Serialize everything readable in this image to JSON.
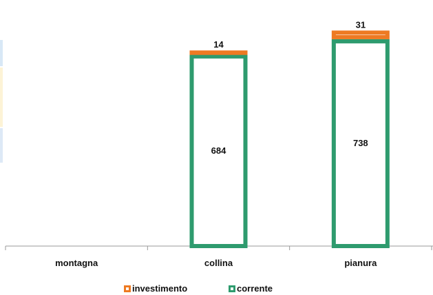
{
  "chart_data": {
    "type": "bar",
    "stacked": true,
    "categories": [
      "montagna",
      "collina",
      "pianura"
    ],
    "series": [
      {
        "name": "corrente",
        "values": [
          0,
          684,
          738
        ],
        "color": "#2e9b6e"
      },
      {
        "name": "investimento",
        "values": [
          0,
          14,
          31
        ],
        "color": "#ee7a22"
      }
    ],
    "data_labels": {
      "corrente": [
        "",
        "684",
        "738"
      ],
      "investimento": [
        "",
        "14",
        "31"
      ]
    },
    "ylim": [
      0,
      769
    ],
    "grid": false,
    "legend_position": "bottom",
    "bar_fill": "#ffffff"
  },
  "legend": [
    {
      "name": "investimento",
      "color": "#ee7a22"
    },
    {
      "name": "corrente",
      "color": "#2e9b6e"
    }
  ],
  "left_strips": [
    "#d8e8f6",
    "#fdf3d6",
    "#dde9f6"
  ]
}
